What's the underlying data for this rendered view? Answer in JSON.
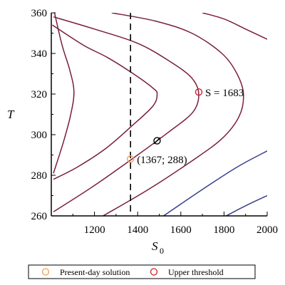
{
  "chart_data": {
    "type": "line",
    "xlabel": "S",
    "xlabel_sub": "0",
    "ylabel": "T",
    "xlim": [
      1000,
      2000
    ],
    "ylim": [
      260,
      360
    ],
    "xticks": [
      1200,
      1400,
      1600,
      1800,
      2000
    ],
    "yticks": [
      260,
      280,
      300,
      320,
      340,
      360
    ],
    "grid": false,
    "vline": {
      "x": 1367,
      "style": "dashed"
    },
    "contours": [
      {
        "kind": "nose",
        "points": [
          [
            1015,
            360
          ],
          [
            1050,
            344
          ],
          [
            1085,
            332
          ],
          [
            1105,
            321
          ],
          [
            1088,
            309
          ],
          [
            1055,
            296
          ],
          [
            1010,
            281
          ]
        ]
      },
      {
        "kind": "nose",
        "points": [
          [
            1005,
            354
          ],
          [
            1150,
            344
          ],
          [
            1260,
            338
          ],
          [
            1380,
            330
          ],
          [
            1470,
            323
          ],
          [
            1490,
            320
          ],
          [
            1470,
            314
          ],
          [
            1370,
            304
          ],
          [
            1250,
            293
          ],
          [
            1120,
            284
          ],
          [
            1010,
            278
          ]
        ]
      },
      {
        "kind": "nose",
        "points": [
          [
            1010,
            358
          ],
          [
            1200,
            352
          ],
          [
            1400,
            345
          ],
          [
            1550,
            336
          ],
          [
            1650,
            328
          ],
          [
            1683,
            320
          ],
          [
            1655,
            311
          ],
          [
            1540,
            301
          ],
          [
            1400,
            290
          ],
          [
            1200,
            275
          ],
          [
            1010,
            262
          ]
        ]
      },
      {
        "kind": "nose",
        "points": [
          [
            1280,
            360
          ],
          [
            1480,
            356
          ],
          [
            1650,
            350
          ],
          [
            1790,
            340
          ],
          [
            1860,
            330
          ],
          [
            1890,
            320
          ],
          [
            1870,
            309
          ],
          [
            1790,
            298
          ],
          [
            1650,
            287
          ],
          [
            1450,
            273
          ],
          [
            1240,
            260
          ]
        ]
      },
      {
        "kind": "nose",
        "points": [
          [
            1700,
            360
          ],
          [
            1800,
            357
          ],
          [
            1900,
            352
          ],
          [
            2000,
            347
          ]
        ]
      },
      {
        "kind": "diag",
        "points": [
          [
            1520,
            260
          ],
          [
            1700,
            273
          ],
          [
            1860,
            284
          ],
          [
            2000,
            292
          ]
        ]
      },
      {
        "kind": "diag",
        "points": [
          [
            1810,
            260
          ],
          [
            1900,
            265
          ],
          [
            2000,
            270
          ]
        ]
      }
    ],
    "markers": [
      {
        "name": "Present-day solution",
        "x": 1367,
        "y": 288,
        "color": "#f0a050",
        "label": "(1367; 288)"
      },
      {
        "name": "Upper threshold",
        "x": 1683,
        "y": 321,
        "color": "#d0202a",
        "label": "S = 1683"
      },
      {
        "name": "",
        "x": 1490,
        "y": 297,
        "color": "#000000",
        "label": ""
      }
    ],
    "legend": {
      "placement": "bottom",
      "entries": [
        {
          "label": "Present-day solution",
          "color": "#f0a050"
        },
        {
          "label": "Upper threshold",
          "color": "#d0202a"
        }
      ]
    },
    "line_colors": {
      "nose": "#7a1e3a",
      "diag": "#3a3f8a"
    }
  }
}
